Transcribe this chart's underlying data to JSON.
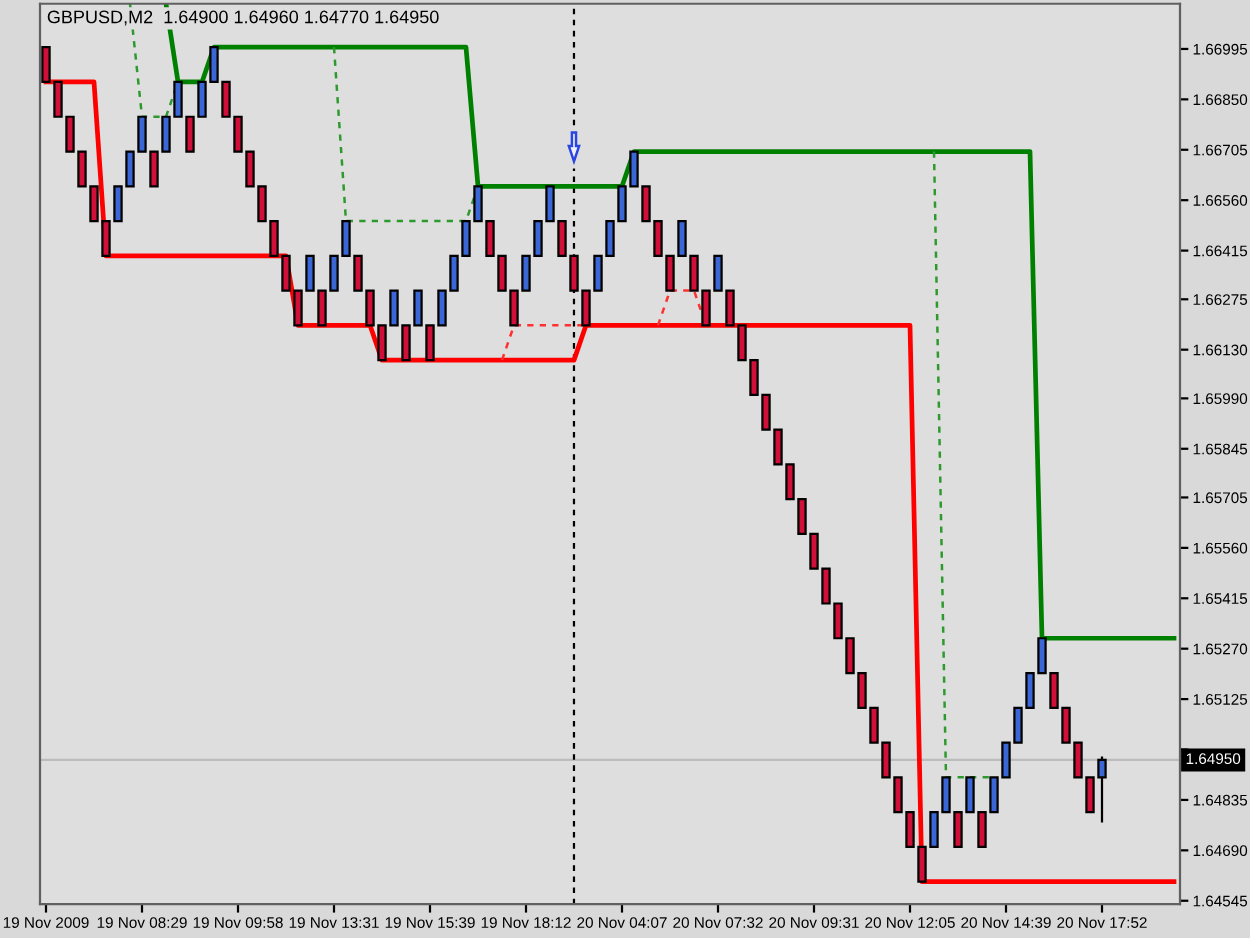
{
  "chart_data": {
    "type": "candlestick",
    "title": "GBPUSD,M2  1.64900 1.64960 1.64770 1.64950",
    "categories": [
      "19 Nov 2009",
      null,
      null,
      null,
      null,
      null,
      null,
      null,
      "19 Nov 08:29",
      null,
      null,
      null,
      null,
      null,
      null,
      null,
      "19 Nov 09:58",
      null,
      null,
      null,
      null,
      null,
      null,
      null,
      "19 Nov 13:31",
      null,
      null,
      null,
      null,
      null,
      null,
      null,
      "19 Nov 15:39",
      null,
      null,
      null,
      null,
      null,
      null,
      null,
      "19 Nov 18:12",
      null,
      null,
      null,
      null,
      null,
      null,
      null,
      "20 Nov 04:07",
      null,
      null,
      null,
      null,
      null,
      null,
      null,
      "20 Nov 07:32",
      null,
      null,
      null,
      null,
      null,
      null,
      null,
      "20 Nov 09:31",
      null,
      null,
      null,
      null,
      null,
      null,
      null,
      "20 Nov 12:05",
      null,
      null,
      null,
      null,
      null,
      null,
      null,
      "20 Nov 14:39",
      null,
      null,
      null,
      null,
      null,
      null,
      null,
      "20 Nov 17:52",
      null,
      null,
      null,
      null,
      null,
      null
    ],
    "ohlc": [
      [
        1.67,
        1.67,
        1.669,
        1.669
      ],
      [
        1.669,
        1.669,
        1.668,
        1.668
      ],
      [
        1.668,
        1.668,
        1.667,
        1.667
      ],
      [
        1.667,
        1.667,
        1.666,
        1.666
      ],
      [
        1.666,
        1.666,
        1.665,
        1.665
      ],
      [
        1.665,
        1.665,
        1.664,
        1.664
      ],
      [
        1.665,
        1.666,
        1.665,
        1.666
      ],
      [
        1.666,
        1.667,
        1.666,
        1.667
      ],
      [
        1.667,
        1.668,
        1.667,
        1.668
      ],
      [
        1.667,
        1.667,
        1.666,
        1.666
      ],
      [
        1.667,
        1.668,
        1.667,
        1.668
      ],
      [
        1.668,
        1.669,
        1.668,
        1.669
      ],
      [
        1.668,
        1.668,
        1.667,
        1.667
      ],
      [
        1.668,
        1.669,
        1.668,
        1.669
      ],
      [
        1.669,
        1.67,
        1.669,
        1.67
      ],
      [
        1.669,
        1.669,
        1.668,
        1.668
      ],
      [
        1.668,
        1.668,
        1.667,
        1.667
      ],
      [
        1.667,
        1.667,
        1.666,
        1.666
      ],
      [
        1.666,
        1.666,
        1.665,
        1.665
      ],
      [
        1.665,
        1.665,
        1.664,
        1.664
      ],
      [
        1.664,
        1.664,
        1.663,
        1.663
      ],
      [
        1.663,
        1.663,
        1.662,
        1.662
      ],
      [
        1.663,
        1.664,
        1.663,
        1.664
      ],
      [
        1.663,
        1.663,
        1.662,
        1.662
      ],
      [
        1.663,
        1.664,
        1.663,
        1.664
      ],
      [
        1.664,
        1.665,
        1.664,
        1.665
      ],
      [
        1.664,
        1.664,
        1.663,
        1.663
      ],
      [
        1.663,
        1.663,
        1.662,
        1.662
      ],
      [
        1.662,
        1.662,
        1.661,
        1.661
      ],
      [
        1.662,
        1.663,
        1.662,
        1.663
      ],
      [
        1.662,
        1.662,
        1.661,
        1.661
      ],
      [
        1.662,
        1.663,
        1.662,
        1.663
      ],
      [
        1.662,
        1.662,
        1.661,
        1.661
      ],
      [
        1.662,
        1.663,
        1.662,
        1.663
      ],
      [
        1.663,
        1.664,
        1.663,
        1.664
      ],
      [
        1.664,
        1.665,
        1.664,
        1.665
      ],
      [
        1.665,
        1.666,
        1.665,
        1.666
      ],
      [
        1.665,
        1.665,
        1.664,
        1.664
      ],
      [
        1.664,
        1.664,
        1.663,
        1.663
      ],
      [
        1.663,
        1.663,
        1.662,
        1.662
      ],
      [
        1.663,
        1.664,
        1.663,
        1.664
      ],
      [
        1.664,
        1.665,
        1.664,
        1.665
      ],
      [
        1.665,
        1.666,
        1.665,
        1.666
      ],
      [
        1.665,
        1.665,
        1.664,
        1.664
      ],
      [
        1.664,
        1.664,
        1.663,
        1.663
      ],
      [
        1.663,
        1.663,
        1.662,
        1.662
      ],
      [
        1.663,
        1.664,
        1.663,
        1.664
      ],
      [
        1.664,
        1.665,
        1.664,
        1.665
      ],
      [
        1.665,
        1.666,
        1.665,
        1.666
      ],
      [
        1.666,
        1.667,
        1.666,
        1.667
      ],
      [
        1.666,
        1.666,
        1.665,
        1.665
      ],
      [
        1.665,
        1.665,
        1.664,
        1.664
      ],
      [
        1.664,
        1.664,
        1.663,
        1.663
      ],
      [
        1.664,
        1.665,
        1.664,
        1.665
      ],
      [
        1.664,
        1.664,
        1.663,
        1.663
      ],
      [
        1.663,
        1.663,
        1.662,
        1.662
      ],
      [
        1.663,
        1.664,
        1.663,
        1.664
      ],
      [
        1.663,
        1.663,
        1.662,
        1.662
      ],
      [
        1.662,
        1.662,
        1.661,
        1.661
      ],
      [
        1.661,
        1.661,
        1.66,
        1.66
      ],
      [
        1.66,
        1.66,
        1.659,
        1.659
      ],
      [
        1.659,
        1.659,
        1.658,
        1.658
      ],
      [
        1.658,
        1.658,
        1.657,
        1.657
      ],
      [
        1.657,
        1.657,
        1.656,
        1.656
      ],
      [
        1.656,
        1.656,
        1.655,
        1.655
      ],
      [
        1.655,
        1.655,
        1.654,
        1.654
      ],
      [
        1.654,
        1.654,
        1.653,
        1.653
      ],
      [
        1.653,
        1.653,
        1.652,
        1.652
      ],
      [
        1.652,
        1.652,
        1.651,
        1.651
      ],
      [
        1.651,
        1.651,
        1.65,
        1.65
      ],
      [
        1.65,
        1.65,
        1.649,
        1.649
      ],
      [
        1.649,
        1.649,
        1.648,
        1.648
      ],
      [
        1.648,
        1.648,
        1.647,
        1.647
      ],
      [
        1.647,
        1.647,
        1.646,
        1.646
      ],
      [
        1.647,
        1.648,
        1.647,
        1.648
      ],
      [
        1.648,
        1.649,
        1.648,
        1.649
      ],
      [
        1.648,
        1.648,
        1.647,
        1.647
      ],
      [
        1.648,
        1.649,
        1.648,
        1.649
      ],
      [
        1.648,
        1.648,
        1.647,
        1.647
      ],
      [
        1.648,
        1.649,
        1.648,
        1.649
      ],
      [
        1.649,
        1.65,
        1.649,
        1.65
      ],
      [
        1.65,
        1.651,
        1.65,
        1.651
      ],
      [
        1.651,
        1.652,
        1.651,
        1.652
      ],
      [
        1.652,
        1.653,
        1.652,
        1.653
      ],
      [
        1.652,
        1.652,
        1.651,
        1.651
      ],
      [
        1.651,
        1.651,
        1.65,
        1.65
      ],
      [
        1.65,
        1.65,
        1.649,
        1.649
      ],
      [
        1.649,
        1.649,
        1.648,
        1.648
      ],
      [
        1.649,
        1.6496,
        1.6477,
        1.6495
      ],
      null,
      null,
      null,
      null,
      null,
      null
    ],
    "colors": [
      "#d01038",
      "#d01038",
      "#d01038",
      "#d01038",
      "#d01038",
      "#d01038",
      "#3a66d6",
      "#3a66d6",
      "#3a66d6",
      "#d01038",
      "#3a66d6",
      "#3a66d6",
      "#d01038",
      "#3a66d6",
      "#3a66d6",
      "#d01038",
      "#d01038",
      "#d01038",
      "#d01038",
      "#d01038",
      "#d01038",
      "#d01038",
      "#3a66d6",
      "#d01038",
      "#3a66d6",
      "#3a66d6",
      "#d01038",
      "#d01038",
      "#d01038",
      "#3a66d6",
      "#d01038",
      "#3a66d6",
      "#d01038",
      "#3a66d6",
      "#3a66d6",
      "#3a66d6",
      "#3a66d6",
      "#d01038",
      "#d01038",
      "#d01038",
      "#3a66d6",
      "#3a66d6",
      "#3a66d6",
      "#d01038",
      "#d01038",
      "#d01038",
      "#3a66d6",
      "#3a66d6",
      "#3a66d6",
      "#3a66d6",
      "#d01038",
      "#d01038",
      "#d01038",
      "#3a66d6",
      "#d01038",
      "#d01038",
      "#3a66d6",
      "#d01038",
      "#d01038",
      "#d01038",
      "#d01038",
      "#d01038",
      "#d01038",
      "#d01038",
      "#d01038",
      "#d01038",
      "#d01038",
      "#d01038",
      "#d01038",
      "#d01038",
      "#d01038",
      "#d01038",
      "#d01038",
      "#d01038",
      "#3a66d6",
      "#3a66d6",
      "#d01038",
      "#3a66d6",
      "#d01038",
      "#3a66d6",
      "#3a66d6",
      "#3a66d6",
      "#3a66d6",
      "#3a66d6",
      "#d01038",
      "#d01038",
      "#d01038",
      "#d01038",
      "#3a66d6",
      null,
      null,
      null,
      null,
      null,
      null
    ],
    "series": [
      {
        "type": "line",
        "color": "#008000",
        "line_style": "solid",
        "values": [
          null,
          null,
          null,
          null,
          null,
          null,
          null,
          null,
          null,
          null,
          1.67125,
          1.669,
          1.669,
          1.669,
          1.67,
          1.67,
          1.67,
          1.67,
          1.67,
          1.67,
          1.67,
          1.67,
          1.67,
          1.67,
          1.67,
          1.67,
          1.67,
          1.67,
          1.67,
          1.67,
          1.67,
          1.67,
          1.67,
          1.67,
          1.67,
          1.67,
          1.666,
          1.666,
          1.666,
          1.666,
          1.666,
          1.666,
          1.666,
          1.666,
          1.666,
          1.666,
          1.666,
          1.666,
          1.666,
          1.667,
          1.667,
          1.667,
          1.667,
          1.667,
          1.667,
          1.667,
          1.667,
          1.667,
          1.667,
          1.667,
          1.667,
          1.667,
          1.667,
          1.667,
          1.667,
          1.667,
          1.667,
          1.667,
          1.667,
          1.667,
          1.667,
          1.667,
          1.667,
          1.667,
          1.667,
          1.667,
          1.667,
          1.667,
          1.667,
          1.667,
          1.667,
          1.667,
          1.667,
          1.653,
          1.653,
          1.653,
          1.653,
          1.653,
          1.653,
          1.653,
          1.653,
          1.653,
          1.653,
          1.653,
          1.653
        ]
      },
      {
        "type": "line",
        "color": "#ff0000",
        "line_style": "solid",
        "values": [
          1.669,
          1.669,
          1.669,
          1.669,
          1.669,
          1.664,
          1.664,
          1.664,
          1.664,
          1.664,
          1.664,
          1.664,
          1.664,
          1.664,
          1.664,
          1.664,
          1.664,
          1.664,
          1.664,
          1.664,
          1.664,
          1.662,
          1.662,
          1.662,
          1.662,
          1.662,
          1.662,
          1.662,
          1.661,
          1.661,
          1.661,
          1.661,
          1.661,
          1.661,
          1.661,
          1.661,
          1.661,
          1.661,
          1.661,
          1.661,
          1.661,
          1.661,
          1.661,
          1.661,
          1.661,
          1.662,
          1.662,
          1.662,
          1.662,
          1.662,
          1.662,
          1.662,
          1.662,
          1.662,
          1.662,
          1.662,
          1.662,
          1.662,
          1.662,
          1.662,
          1.662,
          1.662,
          1.662,
          1.662,
          1.662,
          1.662,
          1.662,
          1.662,
          1.662,
          1.662,
          1.662,
          1.662,
          1.662,
          1.646,
          1.646,
          1.646,
          1.646,
          1.646,
          1.646,
          1.646,
          1.646,
          1.646,
          1.646,
          1.646,
          1.646,
          1.646,
          1.646,
          1.646,
          1.646,
          1.646,
          1.646,
          1.646,
          1.646,
          1.646,
          1.646
        ]
      },
      {
        "type": "line",
        "color": "#2e9a2e",
        "line_style": "dashed",
        "values": [
          null,
          null,
          null,
          null,
          null,
          null,
          null,
          1.67125,
          1.668,
          1.668,
          1.668,
          1.669,
          null,
          null,
          null,
          null,
          null,
          null,
          null,
          null,
          null,
          null,
          null,
          null,
          1.67,
          1.665,
          1.665,
          1.665,
          1.665,
          1.665,
          1.665,
          1.665,
          1.665,
          1.665,
          1.665,
          1.665,
          1.666,
          null,
          null,
          null,
          null,
          null,
          null,
          null,
          null,
          null,
          null,
          null,
          null,
          null,
          null,
          null,
          null,
          null,
          null,
          null,
          null,
          null,
          null,
          null,
          null,
          null,
          null,
          null,
          null,
          null,
          null,
          null,
          null,
          null,
          null,
          null,
          null,
          null,
          1.667,
          1.649,
          1.649,
          1.649,
          1.649,
          1.649,
          null,
          null,
          null,
          null,
          null,
          null,
          null,
          null,
          null,
          null,
          null,
          null,
          null,
          null,
          null
        ]
      },
      {
        "type": "line",
        "color": "#ff3030",
        "line_style": "dashed",
        "values": [
          null,
          null,
          null,
          null,
          null,
          null,
          null,
          null,
          null,
          null,
          null,
          null,
          null,
          null,
          null,
          null,
          null,
          null,
          null,
          null,
          null,
          null,
          null,
          null,
          null,
          null,
          null,
          null,
          null,
          null,
          null,
          null,
          null,
          null,
          null,
          null,
          null,
          null,
          1.661,
          1.662,
          1.662,
          1.662,
          1.662,
          1.662,
          1.662,
          1.662,
          null,
          null,
          null,
          null,
          null,
          1.662,
          1.663,
          1.663,
          1.663,
          1.662,
          null,
          null,
          null,
          null,
          null,
          null,
          null,
          null,
          null,
          null,
          null,
          null,
          null,
          null,
          null,
          null,
          null,
          null,
          null,
          null,
          null,
          null,
          null,
          null,
          null,
          null,
          null,
          null,
          null,
          null,
          null,
          null,
          null,
          null,
          null,
          null,
          null,
          null,
          null
        ]
      }
    ],
    "ylim": [
      1.64535,
      1.67125
    ],
    "yticks": [
      1.66995,
      {
        "value": 1.6685,
        "label": "1.66850"
      },
      1.66705,
      {
        "value": 1.6656,
        "label": "1.66560"
      },
      1.66415,
      1.66275,
      {
        "value": 1.6613,
        "label": "1.66130"
      },
      {
        "value": 1.6599,
        "label": "1.65990"
      },
      1.65845,
      1.65705,
      {
        "value": 1.6556,
        "label": "1.65560"
      },
      1.65415,
      {
        "value": 1.6527,
        "label": "1.65270"
      },
      1.65125,
      {
        "value": 1.6498,
        "label": null
      },
      1.64835,
      {
        "value": 1.6469,
        "label": "1.64690"
      },
      1.64545
    ],
    "ref_lines": [
      {
        "axis": "y",
        "value": 1.6495,
        "label": "1.64950",
        "color": "#bcbcbc",
        "line_style": "solid"
      }
    ]
  }
}
